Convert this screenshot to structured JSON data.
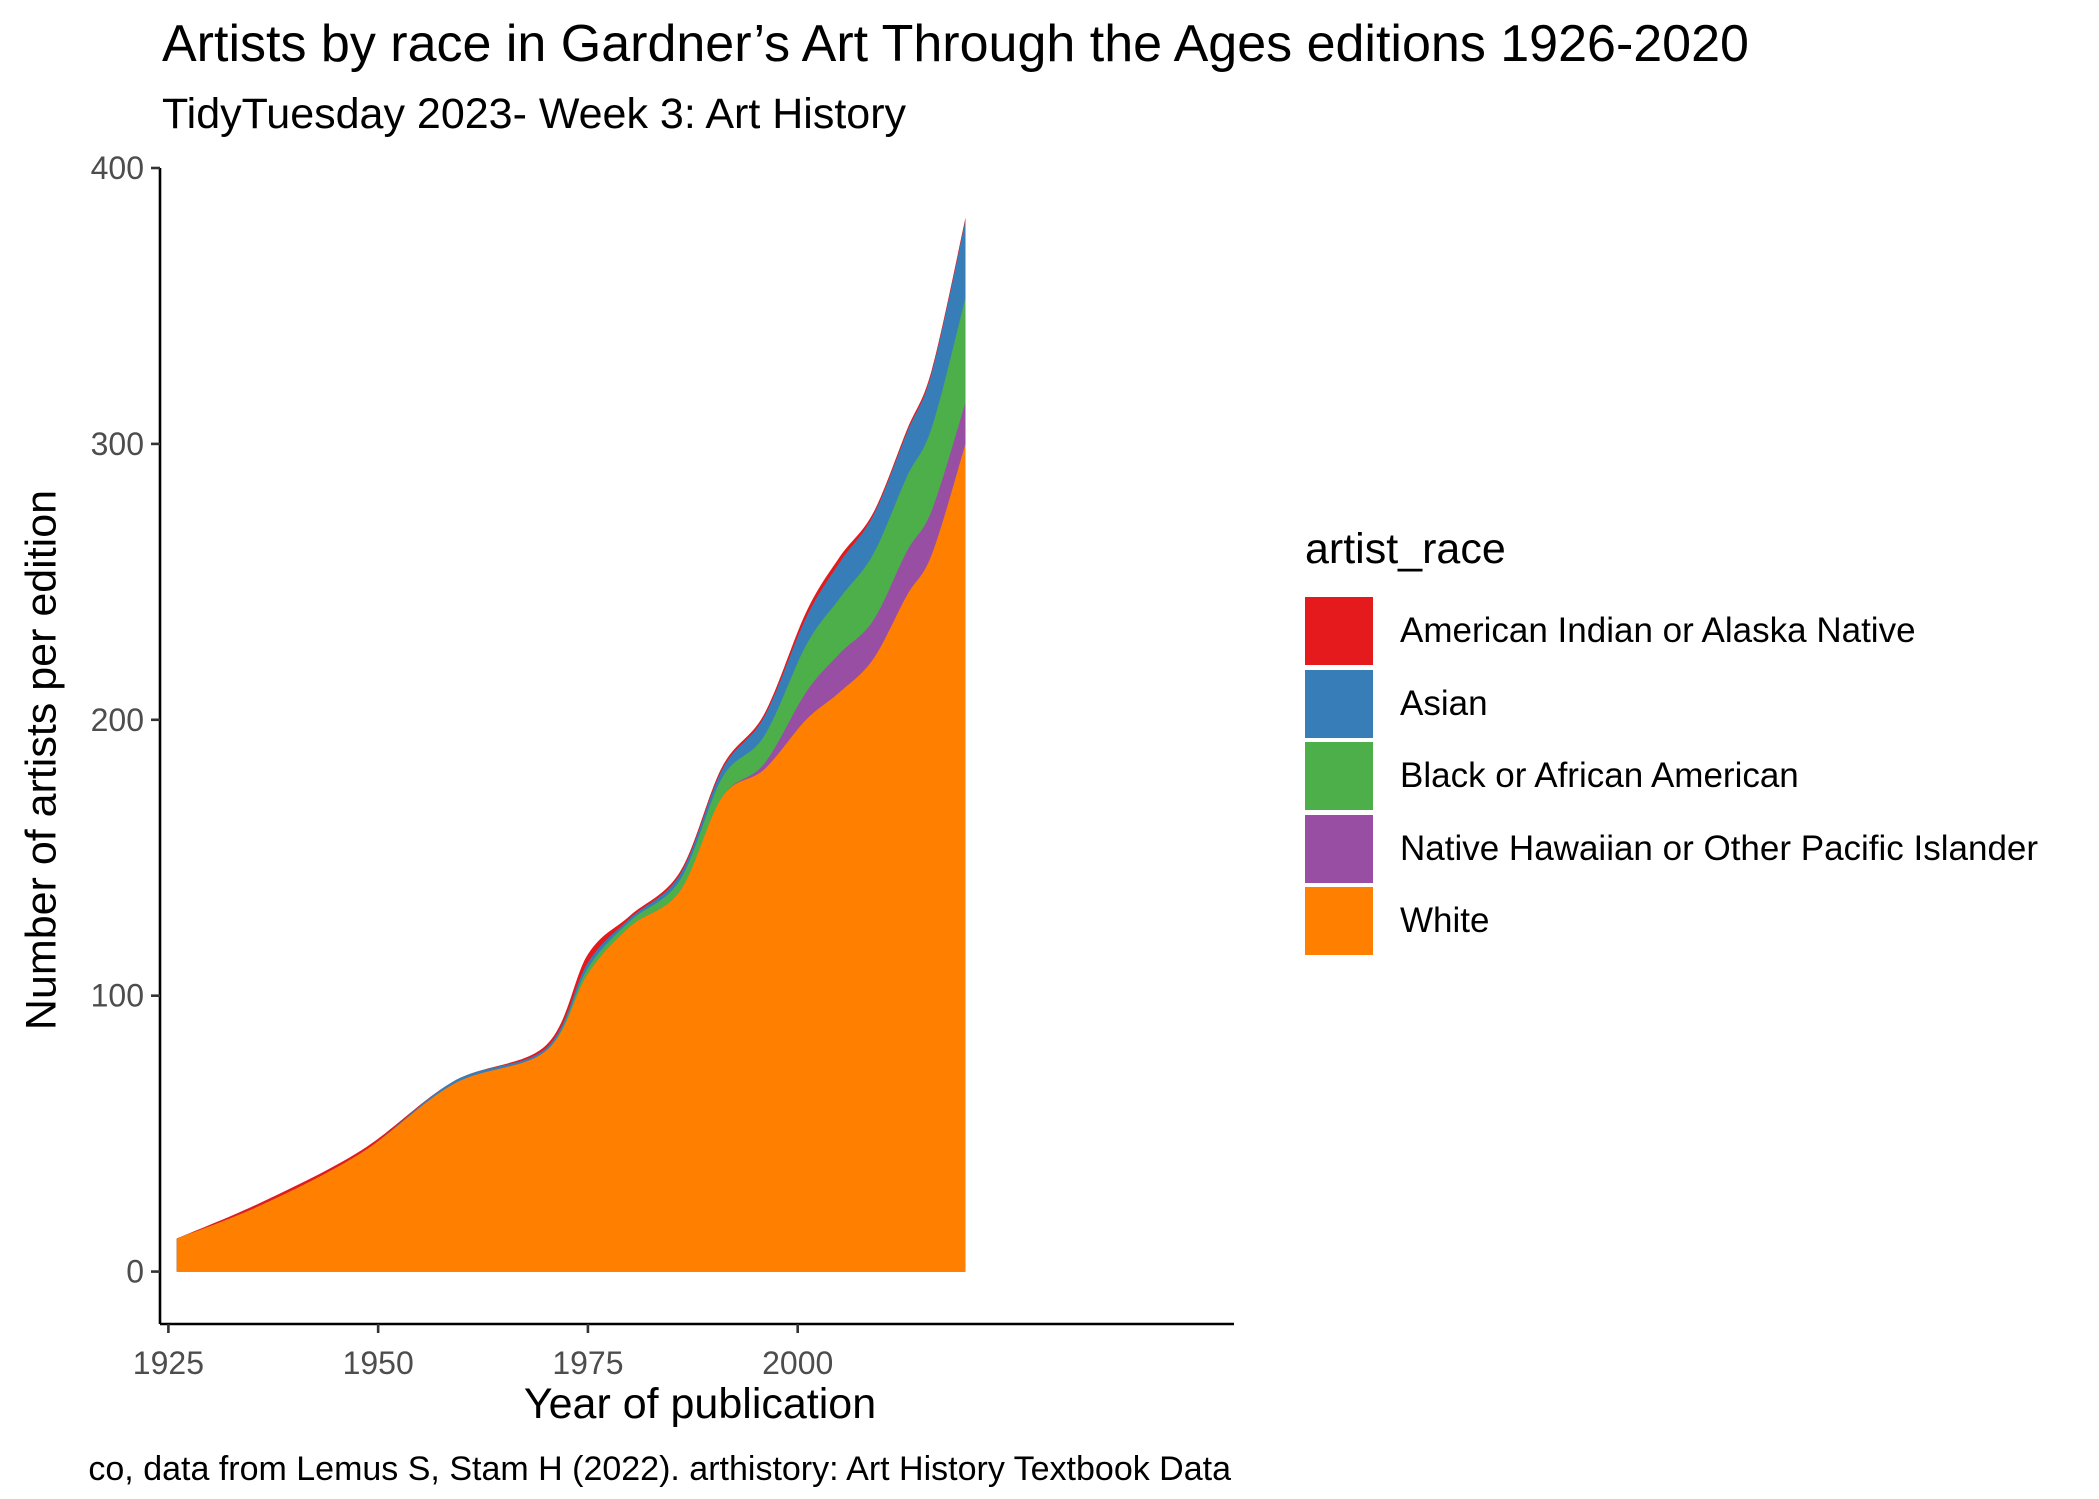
{
  "chart_data": {
    "type": "area",
    "title": "Artists by race in Gardner’s Art Through the Ages editions 1926-2020",
    "subtitle": "TidyTuesday 2023- Week 3: Art History",
    "caption": "co, data from Lemus S, Stam H (2022). arthistory: Art History Textbook Data",
    "xlabel": "Year of publication",
    "ylabel": "Number of artists per edition",
    "xlim": [
      1924,
      2052
    ],
    "ylim": [
      -19,
      400
    ],
    "x_ticks": [
      1925,
      1950,
      1975,
      2000
    ],
    "y_ticks": [
      0,
      100,
      200,
      300,
      400
    ],
    "legend_title": "artist_race",
    "legend_position": "right",
    "grid": false,
    "x": [
      1926,
      1936,
      1948,
      1959,
      1970,
      1975,
      1980,
      1986,
      1991,
      1996,
      2001,
      2005,
      2009,
      2013,
      2016,
      2020
    ],
    "series": [
      {
        "name": "White",
        "color": "#FF7F00",
        "values": [
          12,
          24,
          43,
          68,
          80,
          108,
          125,
          138,
          172,
          182,
          200,
          210,
          222,
          245,
          260,
          300
        ]
      },
      {
        "name": "Native Hawaiian or Other Pacific Islander",
        "color": "#984EA3",
        "values": [
          0,
          0,
          0,
          0,
          0,
          0,
          0,
          0,
          0,
          2,
          10,
          14,
          14,
          16,
          16,
          15
        ]
      },
      {
        "name": "Black or African American",
        "color": "#4DAF4A",
        "values": [
          0,
          0,
          0,
          0,
          0,
          2,
          2,
          4,
          7,
          10,
          17,
          20,
          24,
          27,
          30,
          38
        ]
      },
      {
        "name": "Asian",
        "color": "#377EB8",
        "values": [
          0,
          0,
          0,
          1,
          1,
          2,
          1,
          2,
          3,
          7,
          10,
          13,
          14,
          16,
          20,
          28
        ]
      },
      {
        "name": "American Indian or Alaska Native",
        "color": "#E41A1C",
        "values": [
          0,
          1,
          1,
          0,
          1,
          3,
          1,
          1,
          1,
          1,
          2,
          2,
          1,
          1,
          1,
          1
        ]
      }
    ]
  }
}
